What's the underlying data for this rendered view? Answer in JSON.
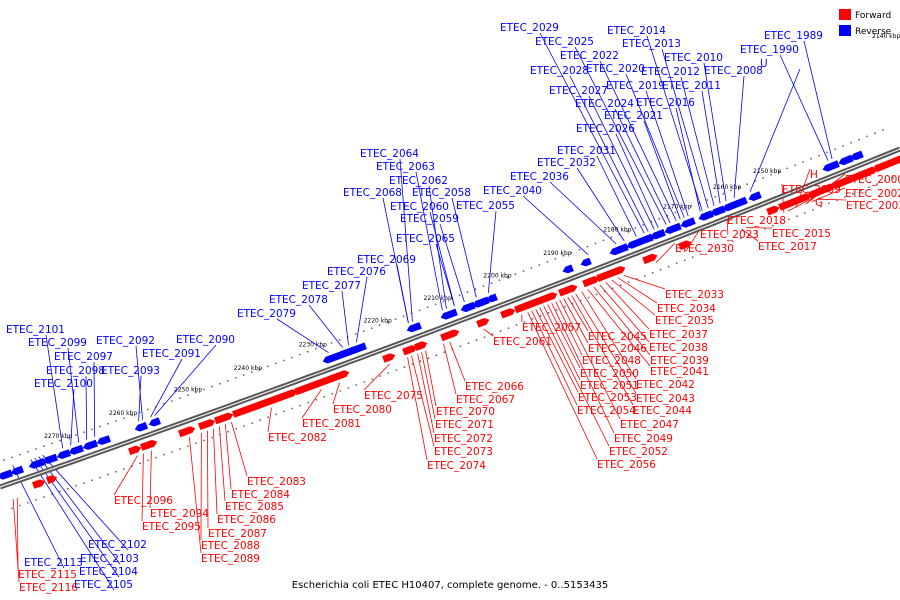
{
  "title": "Escherichia coli ETEC H10407, complete genome. - 0..5153435",
  "legend": {
    "forward_label": "Forward",
    "reverse_label": "Reverse",
    "forward_color": "#ff0000",
    "reverse_color": "#0000ff"
  },
  "colors": {
    "forward": "#ff0000",
    "reverse": "#0000ff",
    "backbone": "#555555"
  },
  "ticks": [
    "2150 kbp",
    "2160 kbp",
    "2170 kbp",
    "2180 kbp",
    "2190 kbp",
    "2200 kbp",
    "2210 kbp",
    "2220 kbp",
    "2230 kbp",
    "2240 kbp",
    "2250 kbp",
    "2260 kbp",
    "2270 kbp"
  ],
  "corner_tick": "2140 kbp",
  "top_labels": [
    "ETEC_1989",
    "ETEC_1990",
    "U",
    "ETEC_2008",
    "ETEC_2010",
    "ETEC_2011",
    "ETEC_2012",
    "ETEC_2013",
    "ETEC_2014",
    "ETEC_2016",
    "ETEC_2019",
    "ETEC_2020",
    "ETEC_2021",
    "ETEC_2022",
    "ETEC_2024",
    "ETEC_2025",
    "ETEC_2026",
    "ETEC_2027",
    "ETEC_2028",
    "ETEC_2029",
    "ETEC_2031",
    "ETEC_2032",
    "ETEC_2036",
    "ETEC_2040",
    "ETEC_2055",
    "ETEC_2058",
    "ETEC_2059",
    "ETEC_2060",
    "ETEC_2062",
    "ETEC_2063",
    "ETEC_2064",
    "ETEC_2065",
    "ETEC_2068",
    "ETEC_2069",
    "ETEC_2076",
    "ETEC_2077",
    "ETEC_2078",
    "ETEC_2079",
    "ETEC_2090",
    "ETEC_2091",
    "ETEC_2092",
    "ETEC_2093",
    "ETEC_2097",
    "ETEC_2098",
    "ETEC_2099",
    "ETEC_2100",
    "ETEC_2101",
    "ETEC_2102",
    "ETEC_2103",
    "ETEC_2104",
    "ETEC_2105",
    "ETEC_2113"
  ],
  "bottom_labels": [
    "ETEC_2000",
    "H",
    "ETEC_2002",
    "ETEC_2003",
    "ETEC_2009",
    "G",
    "ETEC_2015",
    "ETEC_2017",
    "ETEC_2018",
    "ETEC_2023",
    "ETEC_2030",
    "ETEC_2033",
    "ETEC_2034",
    "ETEC_2035",
    "ETEC_2037",
    "ETEC_2038",
    "ETEC_2039",
    "ETEC_2041",
    "ETEC_2042",
    "ETEC_2043",
    "ETEC_2044",
    "ETEC_2045",
    "ETEC_2046",
    "ETEC_2047",
    "ETEC_2048",
    "ETEC_2049",
    "ETEC_2050",
    "ETEC_2051",
    "ETEC_2052",
    "ETEC_2053",
    "ETEC_2054",
    "ETEC_2056",
    "ETEC_2057",
    "ETEC_2061",
    "ETEC_2066",
    "ETEC_2067",
    "ETEC_2070",
    "ETEC_2071",
    "ETEC_2072",
    "ETEC_2073",
    "ETEC_2074",
    "ETEC_2075",
    "ETEC_2080",
    "ETEC_2081",
    "ETEC_2082",
    "ETEC_2083",
    "ETEC_2084",
    "ETEC_2085",
    "ETEC_2086",
    "ETEC_2087",
    "ETEC_2088",
    "ETEC_2089",
    "ETEC_2094",
    "ETEC_2095",
    "ETEC_2096",
    "ETEC_2115",
    "ETEC_2116"
  ]
}
